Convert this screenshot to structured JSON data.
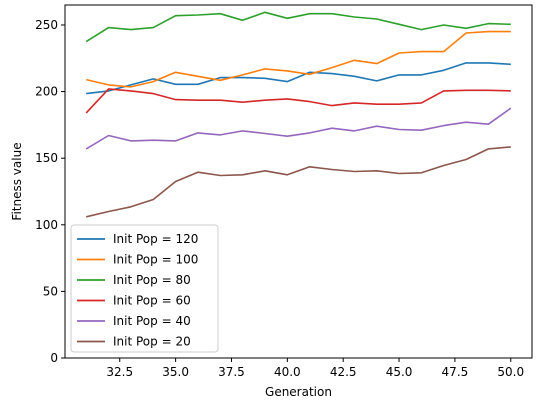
{
  "chart_data": {
    "type": "line",
    "title": "",
    "xlabel": "Generation",
    "ylabel": "Fitness value",
    "xlim": [
      30.05,
      50.95
    ],
    "ylim": [
      0,
      265
    ],
    "xticks": [
      32.5,
      35.0,
      37.5,
      40.0,
      42.5,
      45.0,
      47.5,
      50.0
    ],
    "xtick_labels": [
      "32.5",
      "35.0",
      "37.5",
      "40.0",
      "42.5",
      "45.0",
      "47.5",
      "50.0"
    ],
    "yticks": [
      0,
      50,
      100,
      150,
      200,
      250
    ],
    "ytick_labels": [
      "0",
      "50",
      "100",
      "150",
      "200",
      "250"
    ],
    "grid": false,
    "legend_position": "lower-left",
    "x": [
      31,
      32,
      33,
      34,
      35,
      36,
      37,
      38,
      39,
      40,
      41,
      42,
      43,
      44,
      45,
      46,
      47,
      48,
      49,
      50
    ],
    "series": [
      {
        "name": "Init Pop = 120",
        "color": "#1f77b4",
        "values": [
          198.5,
          200.5,
          205,
          209.5,
          205.5,
          205.5,
          210.5,
          210.5,
          210,
          207.5,
          214.5,
          213.5,
          211.5,
          208,
          212.5,
          212.5,
          216,
          221.5,
          221.5,
          220.5
        ]
      },
      {
        "name": "Init Pop = 100",
        "color": "#ff7f0e",
        "values": [
          209,
          205,
          203.5,
          207.5,
          214.5,
          211.5,
          208.5,
          212.5,
          217,
          215.5,
          213,
          218,
          223.5,
          221,
          229,
          230,
          230,
          244,
          245,
          245
        ]
      },
      {
        "name": "Init Pop = 80",
        "color": "#2ca02c",
        "values": [
          237.5,
          248,
          246.5,
          248,
          257,
          257.5,
          258.5,
          253.5,
          259.5,
          255,
          258.5,
          258.5,
          256,
          254.5,
          250.5,
          246.5,
          250,
          247.5,
          251,
          250.5
        ]
      },
      {
        "name": "Init Pop = 60",
        "color": "#d62728",
        "values": [
          184,
          202,
          200.5,
          198.5,
          194,
          193.5,
          193.5,
          192,
          193.5,
          194.5,
          192.5,
          189.5,
          191.5,
          190.5,
          190.5,
          191.5,
          200.5,
          201,
          201,
          200.5
        ]
      },
      {
        "name": "Init Pop = 40",
        "color": "#9467bd",
        "values": [
          157,
          167,
          163,
          163.5,
          163,
          169,
          167.5,
          170.5,
          168.5,
          166.5,
          169,
          172.5,
          170.5,
          174,
          171.5,
          171,
          174.5,
          177,
          175.5,
          187.5
        ]
      },
      {
        "name": "Init Pop = 20",
        "color": "#8c564b",
        "values": [
          106,
          110,
          113.5,
          119,
          132.5,
          139.5,
          137,
          137.5,
          140.5,
          137.5,
          143.5,
          141.5,
          140,
          140.5,
          138.5,
          139,
          144.5,
          149,
          157,
          158.5
        ]
      }
    ]
  }
}
